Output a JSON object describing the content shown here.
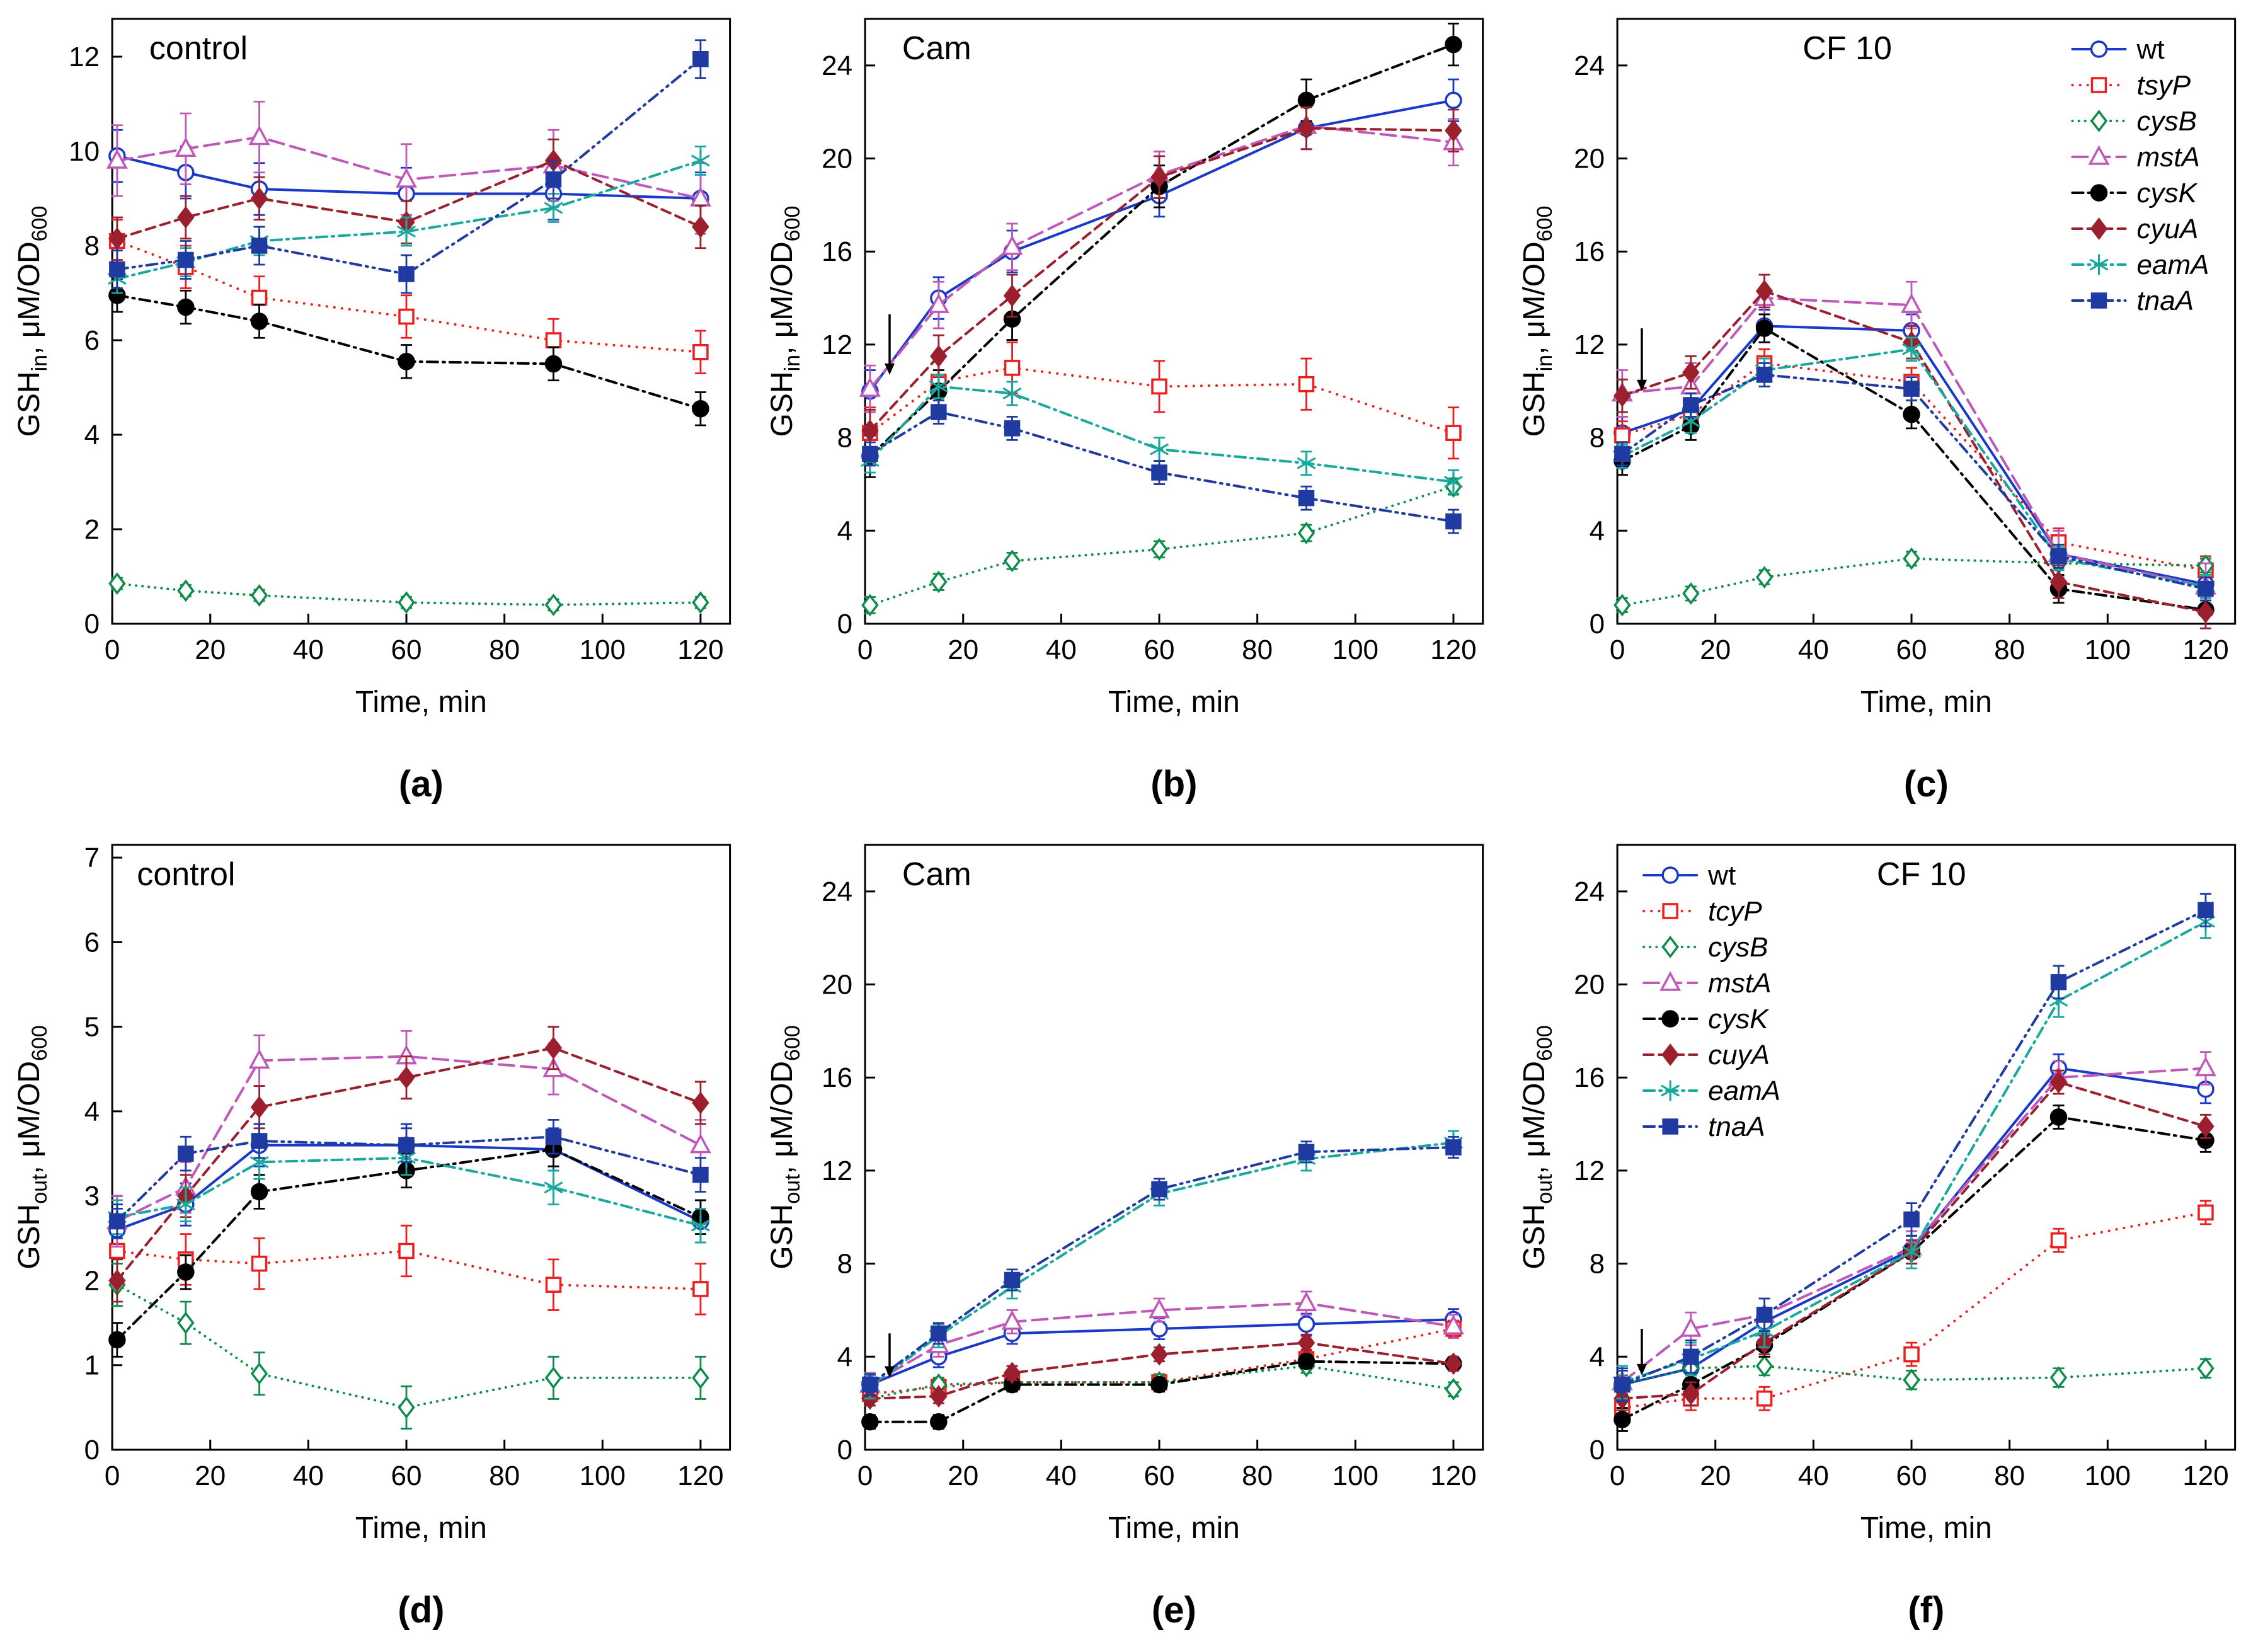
{
  "page": {
    "background": "#ffffff"
  },
  "styles": [
    {
      "key": "wt",
      "color": "#1939c8",
      "marker": "circle",
      "open": true,
      "dash": "solid",
      "italic": false
    },
    {
      "key": "tcyP",
      "color": "#ee1d1d",
      "marker": "square",
      "open": true,
      "dash": "dot",
      "italic": true
    },
    {
      "key": "cysB",
      "color": "#0e8c4a",
      "marker": "diamond",
      "open": true,
      "dash": "finedot",
      "italic": true
    },
    {
      "key": "mstA",
      "color": "#c058ba",
      "marker": "triangle",
      "open": true,
      "dash": "longdash",
      "italic": true
    },
    {
      "key": "cysK",
      "color": "#000000",
      "marker": "circle",
      "open": false,
      "dash": "dashdot",
      "italic": true
    },
    {
      "key": "cuyA",
      "color": "#9c1f2e",
      "marker": "diamond",
      "open": false,
      "dash": "dash",
      "italic": true
    },
    {
      "key": "eamA",
      "color": "#18a89d",
      "marker": "asterisk",
      "open": false,
      "dash": "dashdot",
      "italic": true
    },
    {
      "key": "tnaA",
      "color": "#1f3aa0",
      "marker": "square",
      "open": false,
      "dash": "dashdotdot",
      "italic": true
    }
  ],
  "chart_data": [
    {
      "id": "a",
      "letter": "(a)",
      "type": "line",
      "title": "control",
      "title_x_frac": 0.06,
      "xlabel": "Time, min",
      "ylabel_parts": [
        {
          "t": "GSH"
        },
        {
          "t": "in",
          "sub": true
        },
        {
          "t": ", μM/OD"
        },
        {
          "t": "600",
          "sub": true
        }
      ],
      "xlim": [
        0,
        126
      ],
      "ylim": [
        0,
        12.8
      ],
      "xticks": [
        0,
        20,
        40,
        60,
        80,
        100,
        120
      ],
      "yticks": [
        0,
        2,
        4,
        6,
        8,
        10,
        12
      ],
      "x": [
        1,
        15,
        30,
        60,
        90,
        120
      ],
      "arrow": null,
      "legend": null,
      "series": [
        {
          "name": "wt",
          "style": 0,
          "values": [
            9.9,
            9.55,
            9.2,
            9.1,
            9.1,
            9.0
          ],
          "err": 0.55
        },
        {
          "name": "tsyP",
          "style": 1,
          "values": [
            8.1,
            7.55,
            6.9,
            6.5,
            6.0,
            5.75
          ],
          "err": 0.45
        },
        {
          "name": "cysB",
          "style": 2,
          "values": [
            0.85,
            0.7,
            0.6,
            0.45,
            0.4,
            0.45
          ],
          "err": 0.12
        },
        {
          "name": "mstA",
          "style": 3,
          "values": [
            9.8,
            10.05,
            10.3,
            9.4,
            9.7,
            9.0
          ],
          "err": 0.75
        },
        {
          "name": "cysK",
          "style": 4,
          "values": [
            6.95,
            6.7,
            6.4,
            5.55,
            5.5,
            4.55
          ],
          "err": 0.35
        },
        {
          "name": "cyuA",
          "style": 5,
          "values": [
            8.15,
            8.6,
            9.0,
            8.5,
            9.8,
            8.4
          ],
          "err": 0.45
        },
        {
          "name": "eamA",
          "style": 6,
          "values": [
            7.3,
            7.65,
            8.1,
            8.3,
            8.8,
            9.8
          ],
          "err": 0.3
        },
        {
          "name": "tnaA",
          "style": 7,
          "values": [
            7.5,
            7.7,
            8.0,
            7.4,
            9.4,
            11.95
          ],
          "err": 0.4
        }
      ]
    },
    {
      "id": "b",
      "letter": "(b)",
      "type": "line",
      "title": "Cam",
      "title_x_frac": 0.06,
      "xlabel": "Time, min",
      "ylabel_parts": [
        {
          "t": "GSH"
        },
        {
          "t": "in",
          "sub": true
        },
        {
          "t": ", μM/OD"
        },
        {
          "t": "600",
          "sub": true
        }
      ],
      "xlim": [
        0,
        126
      ],
      "ylim": [
        0,
        26
      ],
      "xticks": [
        0,
        20,
        40,
        60,
        80,
        100,
        120
      ],
      "yticks": [
        0,
        4,
        8,
        12,
        16,
        20,
        24
      ],
      "x": [
        1,
        15,
        30,
        60,
        90,
        120
      ],
      "arrow": {
        "x": 5,
        "y_top": 13.3,
        "y_tip": 10.7
      },
      "legend": null,
      "series": [
        {
          "name": "wt",
          "style": 0,
          "values": [
            10.0,
            14.0,
            16.0,
            18.4,
            21.3,
            22.5
          ],
          "err": 0.9
        },
        {
          "name": "tsyP",
          "style": 1,
          "values": [
            8.2,
            10.4,
            11.0,
            10.2,
            10.3,
            8.2
          ],
          "err": 1.1
        },
        {
          "name": "cysB",
          "style": 2,
          "values": [
            0.8,
            1.8,
            2.7,
            3.2,
            3.9,
            5.9
          ],
          "err": 0.35
        },
        {
          "name": "mstA",
          "style": 3,
          "values": [
            10.1,
            13.7,
            16.2,
            19.3,
            21.4,
            20.7
          ],
          "err": 1.0
        },
        {
          "name": "cysK",
          "style": 4,
          "values": [
            7.2,
            10.0,
            13.1,
            18.8,
            22.5,
            24.9
          ],
          "err": 0.9
        },
        {
          "name": "cyuA",
          "style": 5,
          "values": [
            8.3,
            11.5,
            14.1,
            19.2,
            21.3,
            21.2
          ],
          "err": 0.9
        },
        {
          "name": "eamA",
          "style": 6,
          "values": [
            7.0,
            10.2,
            9.9,
            7.5,
            6.9,
            6.1
          ],
          "err": 0.5
        },
        {
          "name": "tnaA",
          "style": 7,
          "values": [
            7.3,
            9.1,
            8.4,
            6.5,
            5.4,
            4.4
          ],
          "err": 0.5
        }
      ]
    },
    {
      "id": "c",
      "letter": "(c)",
      "type": "line",
      "title": "CF 10",
      "title_x_frac": 0.3,
      "xlabel": "Time, min",
      "ylabel_parts": [
        {
          "t": "GSH"
        },
        {
          "t": "in",
          "sub": true
        },
        {
          "t": ", μM/OD"
        },
        {
          "t": "600",
          "sub": true
        }
      ],
      "xlim": [
        0,
        126
      ],
      "ylim": [
        0,
        26
      ],
      "xticks": [
        0,
        20,
        40,
        60,
        80,
        100,
        120
      ],
      "yticks": [
        0,
        4,
        8,
        12,
        16,
        20,
        24
      ],
      "x": [
        1,
        15,
        30,
        60,
        90,
        120
      ],
      "arrow": {
        "x": 5,
        "y_top": 12.7,
        "y_tip": 10.0
      },
      "legend": {
        "position": "top-right"
      },
      "series": [
        {
          "name": "wt",
          "style": 0,
          "values": [
            8.2,
            9.2,
            12.8,
            12.6,
            3.0,
            1.7
          ],
          "err": 0.7
        },
        {
          "name": "tsyP",
          "style": 1,
          "values": [
            8.1,
            9.0,
            11.2,
            10.4,
            3.5,
            2.3
          ],
          "err": 0.6
        },
        {
          "name": "cysB",
          "style": 2,
          "values": [
            0.8,
            1.3,
            2.0,
            2.8,
            2.6,
            2.5
          ],
          "err": 0.3
        },
        {
          "name": "mstA",
          "style": 3,
          "values": [
            9.9,
            10.2,
            14.0,
            13.7,
            3.0,
            1.6
          ],
          "err": 1.0
        },
        {
          "name": "cysK",
          "style": 4,
          "values": [
            7.0,
            8.5,
            12.7,
            9.0,
            1.5,
            0.6
          ],
          "err": 0.6
        },
        {
          "name": "cyuA",
          "style": 5,
          "values": [
            9.8,
            10.8,
            14.3,
            12.1,
            1.8,
            0.5
          ],
          "err": 0.7
        },
        {
          "name": "eamA",
          "style": 6,
          "values": [
            7.2,
            8.7,
            10.9,
            11.8,
            2.8,
            1.6
          ],
          "err": 0.5
        },
        {
          "name": "tnaA",
          "style": 7,
          "values": [
            7.3,
            9.4,
            10.7,
            10.1,
            2.9,
            1.5
          ],
          "err": 0.5
        }
      ]
    },
    {
      "id": "d",
      "letter": "(d)",
      "type": "line",
      "title": "control",
      "title_x_frac": 0.04,
      "xlabel": "Time, min",
      "ylabel_parts": [
        {
          "t": "GSH"
        },
        {
          "t": "out",
          "sub": true
        },
        {
          "t": ", μM/OD"
        },
        {
          "t": "600",
          "sub": true
        }
      ],
      "xlim": [
        0,
        126
      ],
      "ylim": [
        0,
        7.15
      ],
      "xticks": [
        0,
        20,
        40,
        60,
        80,
        100,
        120
      ],
      "yticks": [
        0,
        1,
        2,
        3,
        4,
        5,
        6,
        7
      ],
      "x": [
        1,
        15,
        30,
        60,
        90,
        120
      ],
      "arrow": null,
      "legend": null,
      "series": [
        {
          "name": "wt",
          "style": 0,
          "values": [
            2.6,
            2.9,
            3.6,
            3.6,
            3.55,
            2.7
          ],
          "err": 0.25
        },
        {
          "name": "tcyP",
          "style": 1,
          "values": [
            2.35,
            2.25,
            2.2,
            2.35,
            1.95,
            1.9
          ],
          "err": 0.3
        },
        {
          "name": "cysB",
          "style": 2,
          "values": [
            1.95,
            1.5,
            0.9,
            0.5,
            0.85,
            0.85
          ],
          "err": 0.25
        },
        {
          "name": "mstA",
          "style": 3,
          "values": [
            2.7,
            3.1,
            4.6,
            4.65,
            4.5,
            3.6
          ],
          "err": 0.3
        },
        {
          "name": "cysK",
          "style": 4,
          "values": [
            1.3,
            2.1,
            3.05,
            3.3,
            3.55,
            2.75
          ],
          "err": 0.2
        },
        {
          "name": "cuyA",
          "style": 5,
          "values": [
            2.0,
            3.0,
            4.05,
            4.4,
            4.75,
            4.1
          ],
          "err": 0.25
        },
        {
          "name": "eamA",
          "style": 6,
          "values": [
            2.75,
            2.9,
            3.4,
            3.45,
            3.1,
            2.65
          ],
          "err": 0.2
        },
        {
          "name": "tnaA",
          "style": 7,
          "values": [
            2.7,
            3.5,
            3.65,
            3.6,
            3.7,
            3.25
          ],
          "err": 0.2
        }
      ]
    },
    {
      "id": "e",
      "letter": "(e)",
      "type": "line",
      "title": "Cam",
      "title_x_frac": 0.06,
      "xlabel": "Time, min",
      "ylabel_parts": [
        {
          "t": "GSH"
        },
        {
          "t": "out",
          "sub": true
        },
        {
          "t": ", μM/OD"
        },
        {
          "t": "600",
          "sub": true
        }
      ],
      "xlim": [
        0,
        126
      ],
      "ylim": [
        0,
        26
      ],
      "xticks": [
        0,
        20,
        40,
        60,
        80,
        100,
        120
      ],
      "yticks": [
        0,
        4,
        8,
        12,
        16,
        20,
        24
      ],
      "x": [
        1,
        15,
        30,
        60,
        90,
        120
      ],
      "arrow": {
        "x": 5,
        "y_top": 5.0,
        "y_tip": 3.1
      },
      "legend": null,
      "series": [
        {
          "name": "wt",
          "style": 0,
          "values": [
            2.8,
            4.0,
            5.0,
            5.2,
            5.4,
            5.6
          ],
          "err": 0.45
        },
        {
          "name": "tcyP",
          "style": 1,
          "values": [
            2.4,
            2.7,
            2.9,
            2.9,
            3.9,
            5.2
          ],
          "err": 0.35
        },
        {
          "name": "cysB",
          "style": 2,
          "values": [
            2.2,
            2.8,
            2.9,
            2.9,
            3.6,
            2.6
          ],
          "err": 0.3
        },
        {
          "name": "mstA",
          "style": 3,
          "values": [
            2.8,
            4.5,
            5.5,
            6.0,
            6.3,
            5.3
          ],
          "err": 0.5
        },
        {
          "name": "cysK",
          "style": 4,
          "values": [
            1.2,
            1.2,
            2.8,
            2.8,
            3.8,
            3.7
          ],
          "err": 0.3
        },
        {
          "name": "cuyA",
          "style": 5,
          "values": [
            2.2,
            2.3,
            3.3,
            4.1,
            4.6,
            3.7
          ],
          "err": 0.3
        },
        {
          "name": "eamA",
          "style": 6,
          "values": [
            2.7,
            4.9,
            7.0,
            11.0,
            12.5,
            13.2
          ],
          "err": 0.5
        },
        {
          "name": "tnaA",
          "style": 7,
          "values": [
            2.8,
            5.0,
            7.3,
            11.2,
            12.8,
            13.0
          ],
          "err": 0.45
        }
      ]
    },
    {
      "id": "f",
      "letter": "(f)",
      "type": "line",
      "title": "CF 10",
      "title_x_frac": 0.42,
      "xlabel": "Time, min",
      "ylabel_parts": [
        {
          "t": "GSH"
        },
        {
          "t": "out",
          "sub": true
        },
        {
          "t": ", μM/OD"
        },
        {
          "t": "600",
          "sub": true
        }
      ],
      "xlim": [
        0,
        126
      ],
      "ylim": [
        0,
        26
      ],
      "xticks": [
        0,
        20,
        40,
        60,
        80,
        100,
        120
      ],
      "yticks": [
        0,
        4,
        8,
        12,
        16,
        20,
        24
      ],
      "x": [
        1,
        15,
        30,
        60,
        90,
        120
      ],
      "arrow": {
        "x": 5,
        "y_top": 5.2,
        "y_tip": 3.2
      },
      "legend": {
        "position": "top-left"
      },
      "series": [
        {
          "name": "wt",
          "style": 0,
          "values": [
            2.8,
            3.5,
            5.5,
            8.6,
            16.4,
            15.5
          ],
          "err": 0.6
        },
        {
          "name": "tcyP",
          "style": 1,
          "values": [
            1.8,
            2.2,
            2.2,
            4.1,
            9.0,
            10.2
          ],
          "err": 0.5
        },
        {
          "name": "cysB",
          "style": 2,
          "values": [
            2.8,
            3.5,
            3.6,
            3.0,
            3.1,
            3.5
          ],
          "err": 0.4
        },
        {
          "name": "mstA",
          "style": 3,
          "values": [
            2.9,
            5.2,
            5.8,
            8.7,
            16.0,
            16.4
          ],
          "err": 0.7
        },
        {
          "name": "cysK",
          "style": 4,
          "values": [
            1.3,
            2.8,
            4.5,
            8.5,
            14.3,
            13.3
          ],
          "err": 0.5
        },
        {
          "name": "cuyA",
          "style": 5,
          "values": [
            2.2,
            2.4,
            4.6,
            8.5,
            15.8,
            13.9
          ],
          "err": 0.5
        },
        {
          "name": "eamA",
          "style": 6,
          "values": [
            2.9,
            3.9,
            5.1,
            8.5,
            19.3,
            22.7
          ],
          "err": 0.7
        },
        {
          "name": "tnaA",
          "style": 7,
          "values": [
            2.8,
            4.0,
            5.8,
            9.9,
            20.1,
            23.2
          ],
          "err": 0.7
        }
      ]
    }
  ]
}
